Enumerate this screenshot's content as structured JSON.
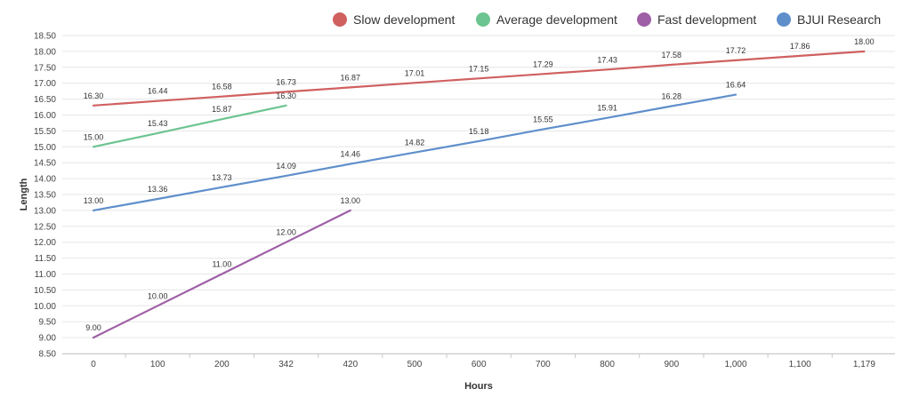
{
  "chart_data": {
    "type": "line",
    "xlabel": "Hours",
    "ylabel": "Length",
    "x_categories": [
      "0",
      "100",
      "200",
      "342",
      "420",
      "500",
      "600",
      "700",
      "800",
      "900",
      "1,000",
      "1,100",
      "1,179"
    ],
    "ylim": [
      8.5,
      18.5
    ],
    "y_ticks": [
      "8.50",
      "9.00",
      "9.50",
      "10.00",
      "10.50",
      "11.00",
      "11.50",
      "12.00",
      "12.50",
      "13.00",
      "13.50",
      "14.00",
      "14.50",
      "15.00",
      "15.50",
      "16.00",
      "16.50",
      "17.00",
      "17.50",
      "18.00",
      "18.50"
    ],
    "legend_position": "top-right",
    "series": [
      {
        "name": "Slow development",
        "color": "#d06060",
        "values": [
          16.3,
          16.44,
          16.58,
          16.73,
          16.87,
          17.01,
          17.15,
          17.29,
          17.43,
          17.58,
          17.72,
          17.86,
          18.0
        ],
        "labels": [
          "16.30",
          "16.44",
          "16.58",
          "16.73",
          "16.87",
          "17.01",
          "17.15",
          "17.29",
          "17.43",
          "17.58",
          "17.72",
          "17.86",
          "18.00"
        ]
      },
      {
        "name": "Average development",
        "color": "#6cc490",
        "values": [
          15.0,
          15.43,
          15.87,
          16.3
        ],
        "labels": [
          "15.00",
          "15.43",
          "15.87",
          "16.30"
        ]
      },
      {
        "name": "Fast development",
        "color": "#9e5fa6",
        "values": [
          9.0,
          10.0,
          11.0,
          12.0,
          13.0
        ],
        "labels": [
          "9.00",
          "10.00",
          "11.00",
          "12.00",
          "13.00"
        ]
      },
      {
        "name": "BJUI Research",
        "color": "#5f8fcb",
        "values": [
          13.0,
          13.36,
          13.73,
          14.09,
          14.46,
          14.82,
          15.18,
          15.55,
          15.91,
          16.28,
          16.64
        ],
        "labels": [
          "13.00",
          "13.36",
          "13.73",
          "14.09",
          "14.46",
          "14.82",
          "15.18",
          "15.55",
          "15.91",
          "16.28",
          "16.64"
        ]
      }
    ]
  }
}
